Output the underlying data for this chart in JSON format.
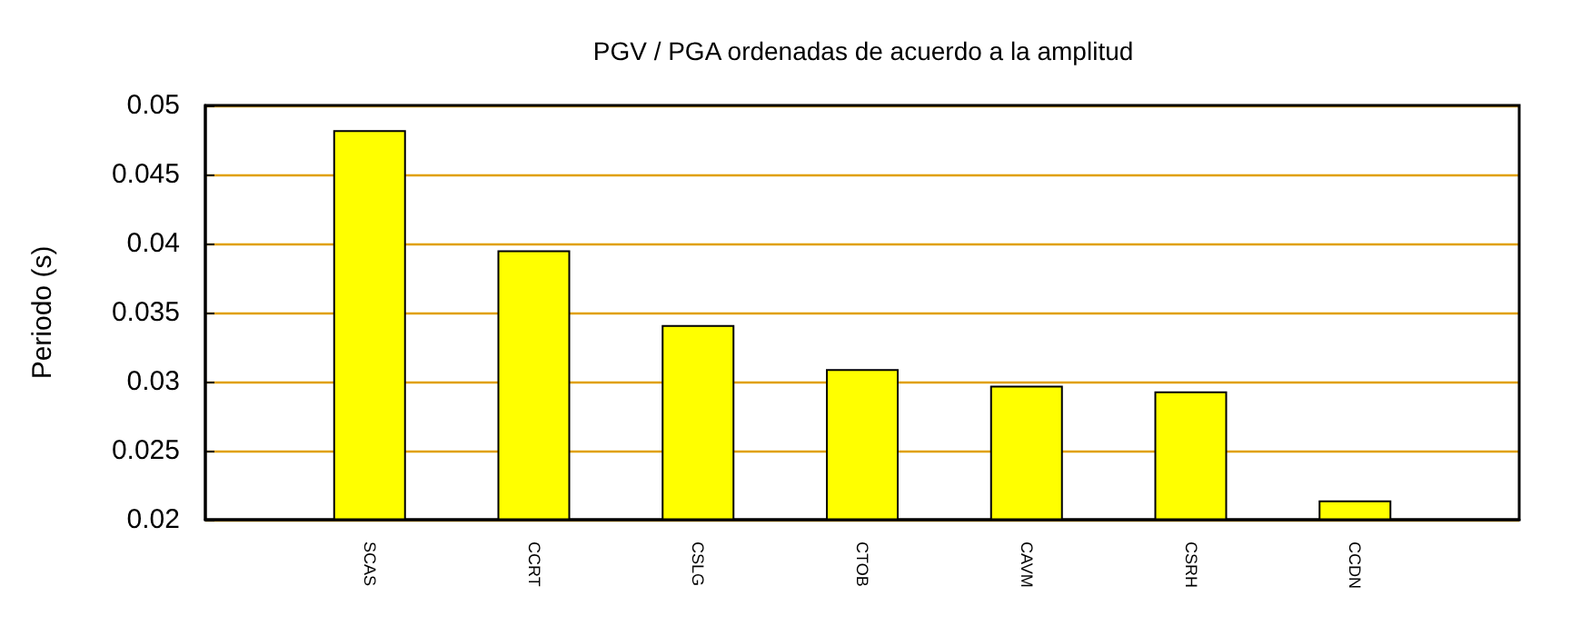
{
  "chart_data": {
    "type": "bar",
    "title": "PGV / PGA ordenadas de acuerdo a la amplitud",
    "ylabel": "Periodo (s)",
    "categories": [
      "SCAS",
      "CCRT",
      "CSLG",
      "CTOB",
      "CAVM",
      "CSRH",
      "CCDN"
    ],
    "values": [
      0.0482,
      0.0395,
      0.0341,
      0.0309,
      0.0297,
      0.0293,
      0.0214
    ],
    "color": "#ffff00",
    "ylim": [
      0.02,
      0.05
    ],
    "yticks": [
      0.02,
      0.025,
      0.03,
      0.035,
      0.04,
      0.045,
      0.05
    ],
    "grid": "y"
  }
}
